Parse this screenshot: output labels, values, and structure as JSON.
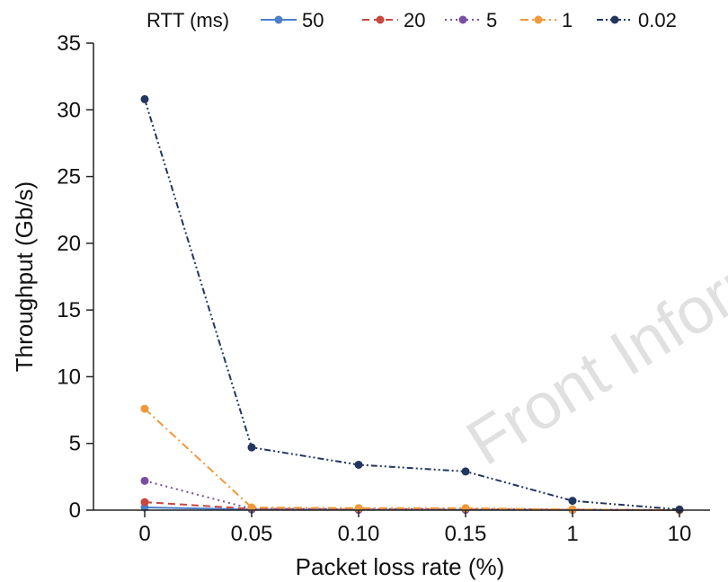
{
  "watermark": "Front Inform",
  "chart_data": {
    "type": "line",
    "xlabel": "Packet loss rate (%)",
    "ylabel": "Throughput (Gb/s)",
    "categories": [
      "0",
      "0.05",
      "0.10",
      "0.15",
      "1",
      "10"
    ],
    "ylim": [
      0,
      35
    ],
    "yticks": [
      0,
      5,
      10,
      15,
      20,
      25,
      30,
      35
    ],
    "grid": false,
    "legend_title": "RTT (ms)",
    "legend_position": "top",
    "series": [
      {
        "name": "50",
        "color": "#4a7fc9",
        "dash": "solid",
        "values": [
          0.2,
          0.05,
          0.03,
          0.03,
          0.02,
          0.0
        ]
      },
      {
        "name": "20",
        "color": "#c8473f",
        "dash": "dashed",
        "values": [
          0.6,
          0.1,
          0.05,
          0.05,
          0.03,
          0.0
        ]
      },
      {
        "name": "5",
        "color": "#7a4fa0",
        "dash": "dotted",
        "values": [
          2.2,
          0.1,
          0.08,
          0.08,
          0.05,
          0.0
        ]
      },
      {
        "name": "1",
        "color": "#f0983a",
        "dash": "dashdot",
        "values": [
          7.6,
          0.2,
          0.15,
          0.15,
          0.05,
          0.0
        ]
      },
      {
        "name": "0.02",
        "color": "#23365f",
        "dash": "dashdot2",
        "values": [
          30.8,
          4.7,
          3.4,
          2.9,
          0.7,
          0.05
        ]
      }
    ]
  }
}
